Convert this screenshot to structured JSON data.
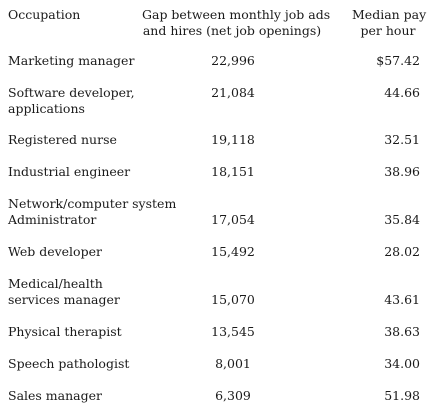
{
  "header": {
    "occupation": "Occupation",
    "gap_line1": "Gap between monthly job ads",
    "gap_line2": "and hires (net job openings)",
    "pay_line1": "Median pay",
    "pay_line2": "per hour"
  },
  "rows": [
    {
      "occupation": [
        "Marketing manager"
      ],
      "gap": "22,996",
      "pay": "$57.42"
    },
    {
      "occupation": [
        "Software developer,",
        "applications"
      ],
      "gap": "21,084",
      "pay": "44.66"
    },
    {
      "occupation": [
        "Registered nurse"
      ],
      "gap": "19,118",
      "pay": "32.51"
    },
    {
      "occupation": [
        "Industrial engineer"
      ],
      "gap": "18,151",
      "pay": "38.96"
    },
    {
      "occupation": [
        "Network/computer system",
        "Administrator"
      ],
      "gap": "17,054",
      "pay": "35.84"
    },
    {
      "occupation": [
        "Web developer"
      ],
      "gap": "15,492",
      "pay": "28.02"
    },
    {
      "occupation": [
        "Medical/health",
        "services manager"
      ],
      "gap": "15,070",
      "pay": "43.61"
    },
    {
      "occupation": [
        "Physical therapist"
      ],
      "gap": "13,545",
      "pay": "38.63"
    },
    {
      "occupation": [
        "Speech pathologist"
      ],
      "gap": "8,001",
      "pay": "34.00"
    },
    {
      "occupation": [
        "Sales manager"
      ],
      "gap": "6,309",
      "pay": "51.98"
    }
  ]
}
